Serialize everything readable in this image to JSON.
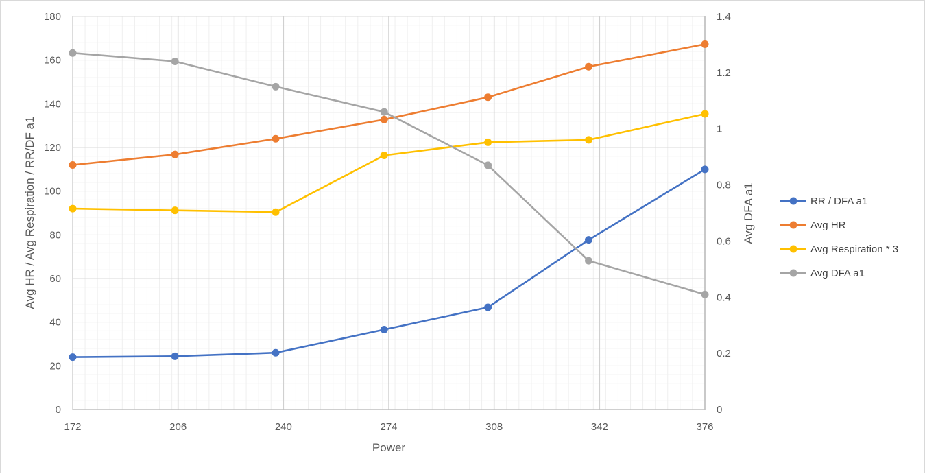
{
  "chart_data": {
    "type": "line",
    "x": [
      172,
      206,
      240,
      274,
      308,
      342,
      376
    ],
    "xlabel": "Power",
    "ylabel": "Avg HR / Avg Respiration / RR/DF a1",
    "y2label": "Avg DFA a1",
    "xlim": [
      172,
      376
    ],
    "ylim": [
      0,
      180
    ],
    "y2lim": [
      0,
      1.4
    ],
    "xticks": [
      "172",
      "206",
      "240",
      "274",
      "308",
      "342",
      "376"
    ],
    "yticks": [
      "0",
      "20",
      "40",
      "60",
      "80",
      "100",
      "120",
      "140",
      "160",
      "180"
    ],
    "y2ticks": [
      "0",
      "0.2",
      "0.4",
      "0.6",
      "0.8",
      "1",
      "1.2",
      "1.4"
    ],
    "grid": true,
    "legend_position": "right",
    "series": [
      {
        "name": "RR / DFA a1",
        "axis": "left",
        "color": "#4472c4",
        "points": [
          [
            172,
            24
          ],
          [
            205,
            24.4
          ],
          [
            237.5,
            26
          ],
          [
            272.5,
            36.6
          ],
          [
            306,
            46.8
          ],
          [
            338.5,
            77.7
          ],
          [
            376,
            110
          ]
        ]
      },
      {
        "name": "Avg HR",
        "axis": "left",
        "color": "#ed7d31",
        "points": [
          [
            172,
            112
          ],
          [
            205,
            116.8
          ],
          [
            237.5,
            124
          ],
          [
            272.5,
            132.8
          ],
          [
            306,
            143
          ],
          [
            338.5,
            157
          ],
          [
            376,
            167.3
          ]
        ]
      },
      {
        "name": "Avg Respiration * 3",
        "axis": "left",
        "color": "#ffc000",
        "points": [
          [
            172,
            92
          ],
          [
            205,
            91.2
          ],
          [
            237.5,
            90.4
          ],
          [
            272.5,
            116.4
          ],
          [
            306,
            122.4
          ],
          [
            338.5,
            123.5
          ],
          [
            376,
            135.4
          ]
        ]
      },
      {
        "name": "Avg DFA a1",
        "axis": "right",
        "color": "#a5a5a5",
        "points": [
          [
            172,
            1.27
          ],
          [
            205,
            1.24
          ],
          [
            237.5,
            1.15
          ],
          [
            272.5,
            1.06
          ],
          [
            306,
            0.87
          ],
          [
            338.5,
            0.53
          ],
          [
            376,
            0.41
          ]
        ]
      }
    ]
  }
}
